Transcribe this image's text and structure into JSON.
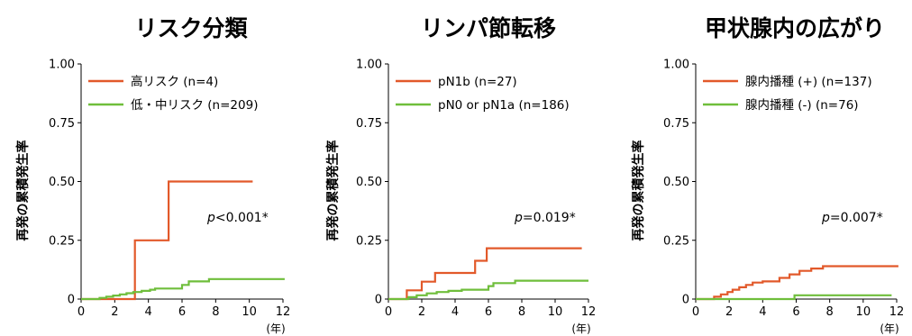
{
  "chart_data": [
    {
      "type": "line",
      "title": "リスク分類",
      "ylabel": "再発の累積発生率",
      "xlabel": "(年)",
      "xlim": [
        0,
        12
      ],
      "ylim": [
        0,
        1
      ],
      "x_ticks": [
        0,
        2,
        4,
        6,
        8,
        10,
        12
      ],
      "y_ticks": [
        0,
        0.25,
        0.5,
        0.75,
        1.0
      ],
      "y_tick_labels": [
        "0",
        "0.25",
        "0.50",
        "0.75",
        "1.00"
      ],
      "legend_position": "top-left",
      "annotation": {
        "prefix": "p",
        "text": "<0.001*"
      },
      "series": [
        {
          "name": "高リスク (n=4)",
          "color": "#e2592a",
          "step": true,
          "points": [
            [
              0,
              0
            ],
            [
              3.2,
              0
            ],
            [
              3.2,
              0.25
            ],
            [
              5.2,
              0.25
            ],
            [
              5.2,
              0.5
            ],
            [
              10.2,
              0.5
            ]
          ]
        },
        {
          "name": "低・中リスク (n=209)",
          "color": "#6fbe3b",
          "step": true,
          "points": [
            [
              0,
              0
            ],
            [
              1.1,
              0
            ],
            [
              1.1,
              0.005
            ],
            [
              1.5,
              0.005
            ],
            [
              1.5,
              0.01
            ],
            [
              1.9,
              0.01
            ],
            [
              1.9,
              0.015
            ],
            [
              2.3,
              0.015
            ],
            [
              2.3,
              0.02
            ],
            [
              2.7,
              0.02
            ],
            [
              2.7,
              0.025
            ],
            [
              3.1,
              0.025
            ],
            [
              3.1,
              0.03
            ],
            [
              3.6,
              0.03
            ],
            [
              3.6,
              0.035
            ],
            [
              4.1,
              0.035
            ],
            [
              4.1,
              0.04
            ],
            [
              4.4,
              0.04
            ],
            [
              4.4,
              0.045
            ],
            [
              6.0,
              0.045
            ],
            [
              6.0,
              0.06
            ],
            [
              6.4,
              0.06
            ],
            [
              6.4,
              0.075
            ],
            [
              7.6,
              0.075
            ],
            [
              7.6,
              0.085
            ],
            [
              12.1,
              0.085
            ]
          ]
        }
      ]
    },
    {
      "type": "line",
      "title": "リンパ節転移",
      "ylabel": "再発の累積発生率",
      "xlabel": "(年)",
      "xlim": [
        0,
        12
      ],
      "ylim": [
        0,
        1
      ],
      "x_ticks": [
        0,
        2,
        4,
        6,
        8,
        10,
        12
      ],
      "y_ticks": [
        0,
        0.25,
        0.5,
        0.75,
        1.0
      ],
      "y_tick_labels": [
        "0",
        "0.25",
        "0.50",
        "0.75",
        "1.00"
      ],
      "legend_position": "top-left",
      "annotation": {
        "prefix": "p",
        "text": "=0.019*"
      },
      "series": [
        {
          "name": "pN1b (n=27)",
          "color": "#e2592a",
          "step": true,
          "points": [
            [
              0,
              0
            ],
            [
              1.1,
              0
            ],
            [
              1.1,
              0.037
            ],
            [
              2.0,
              0.037
            ],
            [
              2.0,
              0.074
            ],
            [
              2.8,
              0.074
            ],
            [
              2.8,
              0.111
            ],
            [
              5.2,
              0.111
            ],
            [
              5.2,
              0.163
            ],
            [
              5.9,
              0.163
            ],
            [
              5.9,
              0.216
            ],
            [
              11.6,
              0.216
            ]
          ]
        },
        {
          "name": "pN0 or pN1a (n=186)",
          "color": "#6fbe3b",
          "step": true,
          "points": [
            [
              0,
              0
            ],
            [
              1.2,
              0
            ],
            [
              1.2,
              0.008
            ],
            [
              1.7,
              0.008
            ],
            [
              1.7,
              0.016
            ],
            [
              2.3,
              0.016
            ],
            [
              2.3,
              0.024
            ],
            [
              2.9,
              0.024
            ],
            [
              2.9,
              0.03
            ],
            [
              3.6,
              0.03
            ],
            [
              3.6,
              0.035
            ],
            [
              4.4,
              0.035
            ],
            [
              4.4,
              0.04
            ],
            [
              6.0,
              0.04
            ],
            [
              6.0,
              0.055
            ],
            [
              6.3,
              0.055
            ],
            [
              6.3,
              0.068
            ],
            [
              7.6,
              0.068
            ],
            [
              7.6,
              0.078
            ],
            [
              12.0,
              0.078
            ]
          ]
        }
      ]
    },
    {
      "type": "line",
      "title": "甲状腺内の広がり",
      "ylabel": "再発の累積発生率",
      "xlabel": "(年)",
      "xlim": [
        0,
        12
      ],
      "ylim": [
        0,
        1
      ],
      "x_ticks": [
        0,
        2,
        4,
        6,
        8,
        10,
        12
      ],
      "y_ticks": [
        0,
        0.25,
        0.5,
        0.75,
        1.0
      ],
      "y_tick_labels": [
        "0",
        "0.25",
        "0.50",
        "0.75",
        "1.00"
      ],
      "legend_position": "top-left",
      "annotation": {
        "prefix": "p",
        "text": "=0.007*"
      },
      "series": [
        {
          "name": "腺内播種 (+) (n=137)",
          "color": "#e2592a",
          "step": true,
          "points": [
            [
              0,
              0
            ],
            [
              1.1,
              0
            ],
            [
              1.1,
              0.01
            ],
            [
              1.5,
              0.01
            ],
            [
              1.5,
              0.02
            ],
            [
              1.9,
              0.02
            ],
            [
              1.9,
              0.03
            ],
            [
              2.2,
              0.03
            ],
            [
              2.2,
              0.04
            ],
            [
              2.6,
              0.04
            ],
            [
              2.6,
              0.05
            ],
            [
              3.0,
              0.05
            ],
            [
              3.0,
              0.06
            ],
            [
              3.4,
              0.06
            ],
            [
              3.4,
              0.07
            ],
            [
              4.0,
              0.07
            ],
            [
              4.0,
              0.075
            ],
            [
              5.0,
              0.075
            ],
            [
              5.0,
              0.09
            ],
            [
              5.6,
              0.09
            ],
            [
              5.6,
              0.105
            ],
            [
              6.2,
              0.105
            ],
            [
              6.2,
              0.12
            ],
            [
              6.9,
              0.12
            ],
            [
              6.9,
              0.13
            ],
            [
              7.6,
              0.13
            ],
            [
              7.6,
              0.14
            ],
            [
              12.1,
              0.14
            ]
          ]
        },
        {
          "name": "腺内播種 (-) (n=76)",
          "color": "#6fbe3b",
          "step": true,
          "points": [
            [
              0,
              0
            ],
            [
              5.9,
              0
            ],
            [
              5.9,
              0.016
            ],
            [
              11.7,
              0.016
            ]
          ]
        }
      ]
    }
  ]
}
